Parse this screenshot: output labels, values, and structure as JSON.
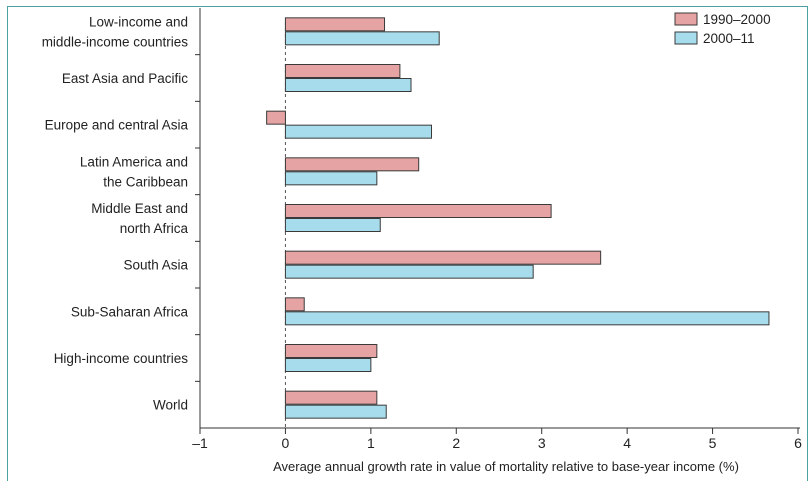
{
  "chart_data": {
    "type": "bar",
    "orientation": "horizontal",
    "categories": [
      [
        "Low-income and",
        "middle-income countries"
      ],
      [
        "East Asia and Pacific"
      ],
      [
        "Europe and central Asia"
      ],
      [
        "Latin America and",
        "the Caribbean"
      ],
      [
        "Middle East and",
        "north Africa"
      ],
      [
        "South Asia"
      ],
      [
        "Sub-Saharan Africa"
      ],
      [
        "High-income countries"
      ],
      [
        "World"
      ]
    ],
    "series": [
      {
        "name": "1990–2000",
        "color": "#e5a3a3",
        "values": [
          1.16,
          1.34,
          -0.22,
          1.56,
          3.11,
          3.69,
          0.22,
          1.07,
          1.07
        ]
      },
      {
        "name": "2000–11",
        "color": "#a6dcec",
        "values": [
          1.8,
          1.47,
          1.71,
          1.07,
          1.11,
          2.9,
          5.66,
          1.0,
          1.18
        ]
      }
    ],
    "xlim": [
      -1,
      6
    ],
    "xticks": [
      -1,
      0,
      1,
      2,
      3,
      4,
      5,
      6
    ],
    "xtick_labels": [
      "–1",
      "0",
      "1",
      "2",
      "3",
      "4",
      "5",
      "6"
    ],
    "xlabel": "Average annual growth rate in value of mortality relative to base-year income (%)",
    "ylabel": "",
    "title": "",
    "legend_position": "top-right",
    "zero_line": "dashed",
    "frame_color": "#4aa3a0",
    "bar_edge_color": "#3a3a3a"
  }
}
